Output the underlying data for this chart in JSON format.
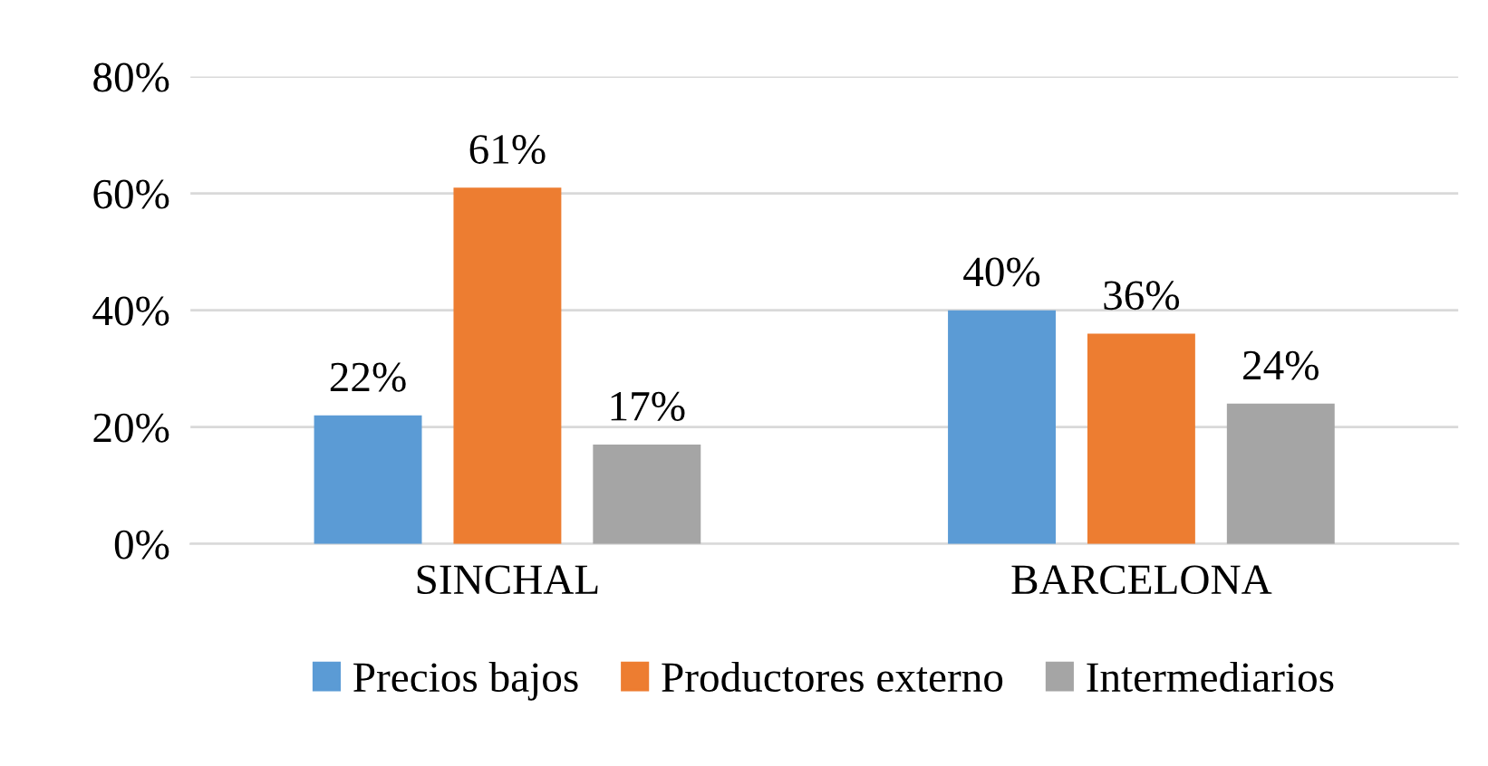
{
  "chart_data": {
    "type": "bar",
    "categories": [
      "SINCHAL",
      "BARCELONA"
    ],
    "series": [
      {
        "name": "Precios bajos",
        "color": "#5b9bd5",
        "values": [
          22,
          40
        ],
        "value_labels": [
          "22%",
          "40%"
        ]
      },
      {
        "name": "Productores externo",
        "color": "#ed7d31",
        "values": [
          61,
          36
        ],
        "value_labels": [
          "61%",
          "36%"
        ]
      },
      {
        "name": "Intermediarios",
        "color": "#a5a5a5",
        "values": [
          17,
          24
        ],
        "value_labels": [
          "17%",
          "24%"
        ]
      }
    ],
    "ylim": [
      0,
      80
    ],
    "yticks": [
      {
        "value": 0,
        "label": "0%"
      },
      {
        "value": 20,
        "label": "20%"
      },
      {
        "value": 40,
        "label": "40%"
      },
      {
        "value": 60,
        "label": "60%"
      },
      {
        "value": 80,
        "label": "80%"
      }
    ],
    "grid": "y",
    "legend": "bottom"
  }
}
